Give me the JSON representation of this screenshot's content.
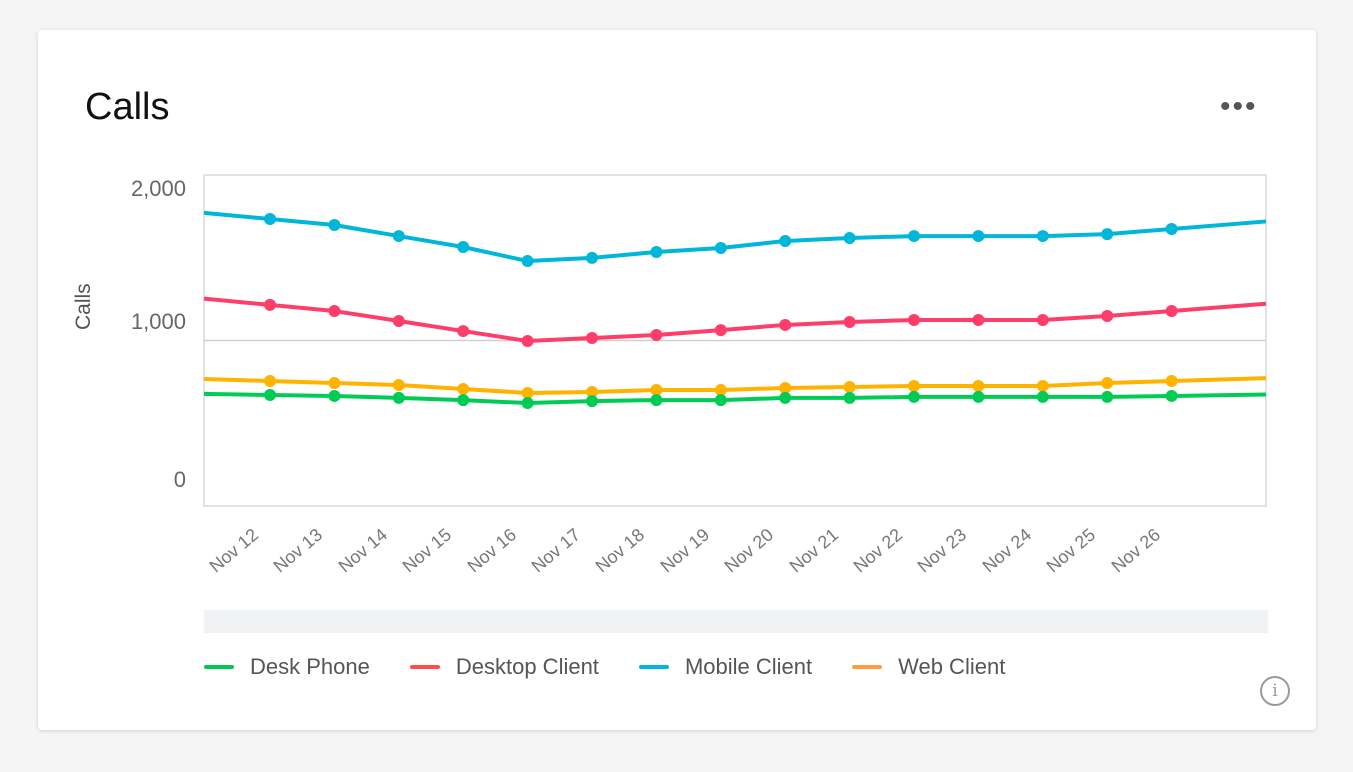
{
  "card": {
    "title": "Calls",
    "menu_icon": "more-horizontal-icon",
    "info_icon": "info-icon"
  },
  "chart_data": {
    "type": "line",
    "title": "Calls",
    "ylabel": "Calls",
    "xlabel": "",
    "ylim": [
      0,
      2000
    ],
    "y_ticks": [
      "2,000",
      "1,000",
      "0"
    ],
    "grid": "horizontal line at 1,000",
    "legend_position": "bottom",
    "categories": [
      "Nov 12",
      "Nov 13",
      "Nov 14",
      "Nov 15",
      "Nov 16",
      "Nov 17",
      "Nov 18",
      "Nov 19",
      "Nov 20",
      "Nov 21",
      "Nov 22",
      "Nov 23",
      "Nov 24",
      "Nov 25",
      "Nov 26"
    ],
    "series": [
      {
        "name": "Mobile Client",
        "color": "#00b6d9",
        "values": [
          1734,
          1698,
          1631,
          1565,
          1480,
          1499,
          1535,
          1559,
          1601,
          1619,
          1631,
          1631,
          1631,
          1643,
          1674
        ]
      },
      {
        "name": "Desktop Client",
        "color": "#ff3d6a",
        "values": [
          1215,
          1178,
          1118,
          1057,
          997,
          1015,
          1033,
          1063,
          1094,
          1112,
          1124,
          1124,
          1124,
          1148,
          1178
        ]
      },
      {
        "name": "Web Client",
        "color": "#ffb300",
        "values": [
          755,
          743,
          731,
          707,
          683,
          689,
          701,
          701,
          713,
          719,
          725,
          725,
          725,
          743,
          755
        ]
      },
      {
        "name": "Desk Phone",
        "color": "#00cc55",
        "values": [
          671,
          665,
          653,
          640,
          622,
          634,
          640,
          640,
          653,
          653,
          659,
          659,
          659,
          659,
          665
        ]
      }
    ]
  },
  "legend": [
    {
      "label": "Desk Phone",
      "color": "#00c853"
    },
    {
      "label": "Desktop Client",
      "color": "#ff4d4d"
    },
    {
      "label": "Mobile Client",
      "color": "#00b6d9"
    },
    {
      "label": "Web Client",
      "color": "#ff9e40"
    }
  ]
}
